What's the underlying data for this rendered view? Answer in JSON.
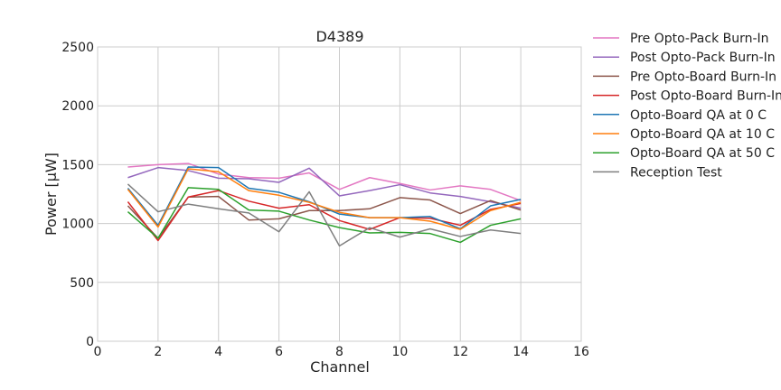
{
  "chart_data": {
    "type": "line",
    "title": "D4389",
    "xlabel": "Channel",
    "ylabel": "Power [µW]",
    "xlim": [
      0,
      16
    ],
    "ylim": [
      0,
      2500
    ],
    "xticks": [
      0,
      2,
      4,
      6,
      8,
      10,
      12,
      14,
      16
    ],
    "yticks": [
      0,
      500,
      1000,
      1500,
      2000,
      2500
    ],
    "grid": true,
    "legend_position": "outside-right",
    "x": [
      1,
      2,
      3,
      4,
      5,
      6,
      7,
      8,
      9,
      10,
      11,
      12,
      13,
      14
    ],
    "series": [
      {
        "name": "Pre Opto-Pack Burn-In",
        "color": "#e377c2",
        "values": [
          1480,
          1500,
          1510,
          1420,
          1390,
          1385,
          1430,
          1290,
          1390,
          1340,
          1285,
          1320,
          1290,
          1195
        ]
      },
      {
        "name": "Post Opto-Pack Burn-In",
        "color": "#9467bd",
        "values": [
          1390,
          1475,
          1450,
          1385,
          1380,
          1350,
          1470,
          1235,
          1280,
          1330,
          1260,
          1230,
          1185,
          1130
        ]
      },
      {
        "name": "Pre Opto-Board Burn-In",
        "color": "#8c564b",
        "values": [
          1150,
          875,
          1225,
          1230,
          1030,
          1040,
          1110,
          1110,
          1125,
          1220,
          1200,
          1085,
          1195,
          1115
        ]
      },
      {
        "name": "Post Opto-Board Burn-In",
        "color": "#d62728",
        "values": [
          1185,
          855,
          1225,
          1280,
          1190,
          1130,
          1160,
          1025,
          950,
          1050,
          1045,
          985,
          1120,
          1170
        ]
      },
      {
        "name": "Opto-Board QA at 0 C",
        "color": "#1f77b4",
        "values": [
          1300,
          985,
          1480,
          1475,
          1300,
          1265,
          1185,
          1080,
          1050,
          1050,
          1060,
          955,
          1150,
          1205
        ]
      },
      {
        "name": "Opto-Board QA at 10 C",
        "color": "#ff7f0e",
        "values": [
          1290,
          970,
          1465,
          1440,
          1280,
          1240,
          1180,
          1095,
          1050,
          1050,
          1020,
          950,
          1110,
          1180
        ]
      },
      {
        "name": "Opto-Board QA at 50 C",
        "color": "#2ca02c",
        "values": [
          1100,
          875,
          1305,
          1290,
          1115,
          1105,
          1030,
          965,
          920,
          925,
          915,
          840,
          985,
          1040
        ]
      },
      {
        "name": "Reception Test",
        "color": "#7f7f7f",
        "values": [
          1335,
          1100,
          1165,
          1125,
          1090,
          930,
          1270,
          810,
          965,
          885,
          955,
          890,
          945,
          915
        ]
      }
    ]
  }
}
